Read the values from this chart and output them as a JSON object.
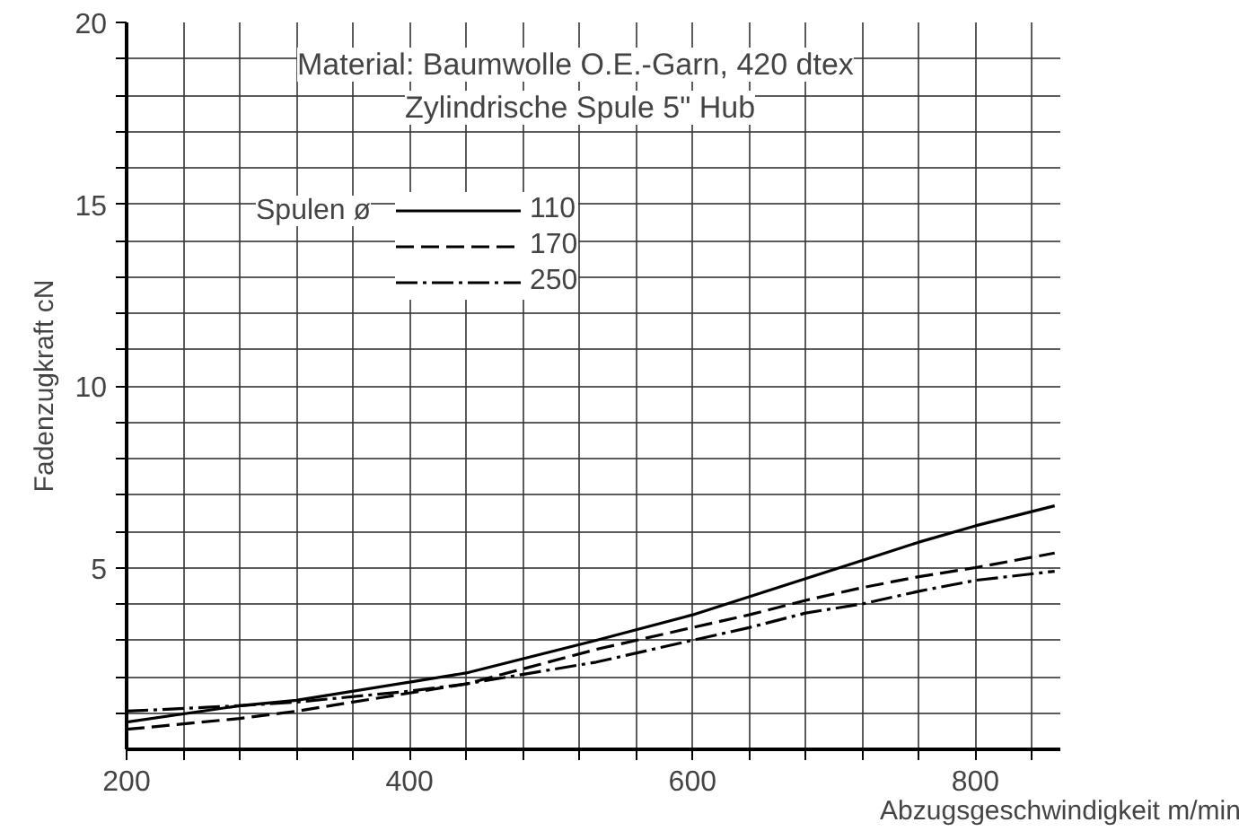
{
  "chart_data": {
    "type": "line",
    "title": "Material: Baumwolle O.E.-Garn, 420 dtex",
    "subtitle": "Zylindrische Spule 5\" Hub",
    "xlabel": "Abzugsgeschwindigkeit m/min",
    "ylabel": "Fadenzugkraft cN",
    "legend_title": "Spulen ø",
    "x": [
      200,
      280,
      320,
      400,
      440,
      532,
      600,
      640,
      680,
      720,
      760,
      800,
      856
    ],
    "series": [
      {
        "name": "110",
        "color": "#000000",
        "line_style": "solid",
        "values": [
          0.75,
          1.2,
          1.35,
          1.85,
          2.1,
          3.0,
          3.7,
          4.2,
          4.7,
          5.2,
          5.7,
          6.15,
          6.7
        ]
      },
      {
        "name": "170",
        "color": "#000000",
        "line_style": "dashed",
        "values": [
          0.55,
          0.85,
          1.05,
          1.55,
          1.8,
          2.75,
          3.35,
          3.7,
          4.1,
          4.45,
          4.75,
          5.0,
          5.4
        ]
      },
      {
        "name": "250",
        "color": "#000000",
        "line_style": "dashdot",
        "values": [
          1.05,
          1.2,
          1.3,
          1.6,
          1.8,
          2.4,
          3.0,
          3.35,
          3.75,
          4.0,
          4.35,
          4.65,
          4.9
        ]
      }
    ],
    "xlim": [
      200,
      860
    ],
    "ylim": [
      0,
      20
    ],
    "xticks": [
      200,
      {
        "value": 240,
        "label": null
      },
      {
        "value": 280,
        "label": null
      },
      {
        "value": 320,
        "label": null
      },
      {
        "value": 360,
        "label": null
      },
      400,
      {
        "value": 440,
        "label": null
      },
      {
        "value": 480,
        "label": null
      },
      {
        "value": 520,
        "label": null
      },
      {
        "value": 560,
        "label": null
      },
      600,
      {
        "value": 640,
        "label": null
      },
      {
        "value": 680,
        "label": null
      },
      {
        "value": 720,
        "label": null
      },
      {
        "value": 760,
        "label": null
      },
      800,
      {
        "value": 840,
        "label": null
      }
    ],
    "yticks": [
      {
        "value": 1,
        "label": null
      },
      {
        "value": 2,
        "label": null
      },
      {
        "value": 3,
        "label": null
      },
      {
        "value": 4,
        "label": null
      },
      5,
      {
        "value": 6,
        "label": null
      },
      {
        "value": 7,
        "label": null
      },
      {
        "value": 8,
        "label": null
      },
      {
        "value": 9,
        "label": null
      },
      10,
      {
        "value": 11,
        "label": null
      },
      {
        "value": 12,
        "label": null
      },
      {
        "value": 13,
        "label": null
      },
      {
        "value": 14,
        "label": null
      },
      15,
      {
        "value": 16,
        "label": null
      },
      {
        "value": 17,
        "label": null
      },
      {
        "value": 18,
        "label": null
      },
      {
        "value": 19,
        "label": null
      },
      20
    ],
    "grid": true,
    "legend": "top left",
    "marker": "none"
  }
}
